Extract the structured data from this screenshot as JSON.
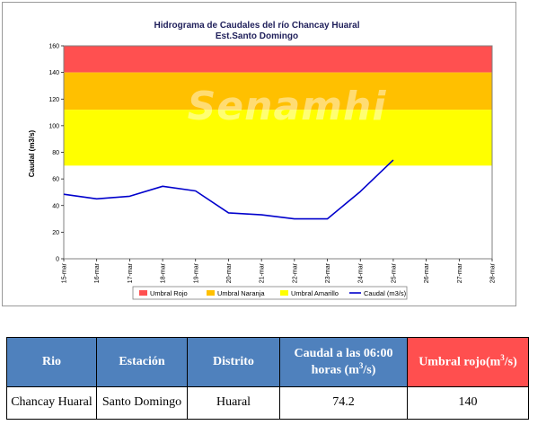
{
  "chart_data": {
    "type": "line",
    "title": "Hidrograma de Caudales del río Chancay Huaral",
    "subtitle": "Est.Santo Domingo",
    "xlabel": "",
    "ylabel": "Caudal (m3/s)",
    "watermark": "Senamhi",
    "ylim": [
      0,
      160
    ],
    "yticks": [
      "0",
      "20",
      "40",
      "60",
      "80",
      "100",
      "120",
      "140",
      "160"
    ],
    "categories": [
      "15-mar",
      "16-mar",
      "17-mar",
      "18-mar",
      "19-mar",
      "20-mar",
      "21-mar",
      "22-mar",
      "23-mar",
      "24-mar",
      "25-mar",
      "26-mar",
      "27-mar",
      "28-mar"
    ],
    "bands": [
      {
        "name": "Umbral Rojo",
        "from": 140,
        "to": 160,
        "color": "#ff5050"
      },
      {
        "name": "Umbral Naranja",
        "from": 112,
        "to": 140,
        "color": "#ffc000"
      },
      {
        "name": "Umbral Amarillo",
        "from": 70,
        "to": 112,
        "color": "#ffff00"
      }
    ],
    "series": [
      {
        "name": "Caudal (m3/s)",
        "color": "#0000cc",
        "values": [
          48.5,
          45,
          47,
          54.5,
          51,
          34.5,
          33,
          30,
          30,
          50.5,
          74.2,
          null,
          null,
          null
        ]
      }
    ],
    "legend": [
      "Umbral Rojo",
      "Umbral Naranja",
      "Umbral Amarillo",
      "Caudal (m3/s)"
    ],
    "legend_position": "bottom",
    "grid": false
  },
  "table": {
    "headers": {
      "rio": "Rio",
      "estacion": "Estación",
      "distrito": "Distrito",
      "caudal_pre": "Caudal a las 06:00 horas (m",
      "caudal_sup": "3",
      "caudal_post": "/s)",
      "umbral_pre": "Umbral rojo(m",
      "umbral_sup": "3",
      "umbral_post": "/s)"
    },
    "row": {
      "rio": "Chancay Huaral",
      "estacion": "Santo Domingo",
      "distrito": "Huaral",
      "caudal": "74.2",
      "umbral": "140"
    }
  }
}
